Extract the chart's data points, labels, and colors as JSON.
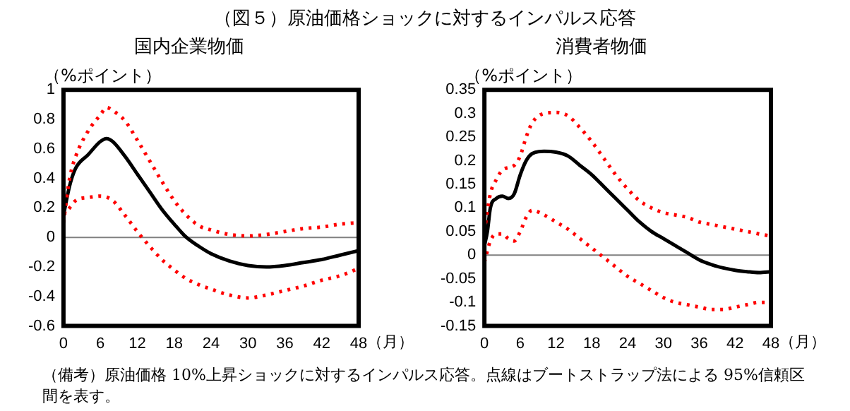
{
  "chart_data": [
    {
      "type": "line",
      "title": "国内企業物価",
      "ylabel": "（%ポイント）",
      "xlabel": "（月）",
      "xlim": [
        0,
        48
      ],
      "xticks": [
        0,
        6,
        12,
        18,
        24,
        30,
        36,
        42,
        48
      ],
      "ylim": [
        -0.6,
        1
      ],
      "yticks": [
        -0.6,
        -0.4,
        -0.2,
        0,
        0.2,
        0.4,
        0.6,
        0.8,
        1
      ],
      "grid": false,
      "legend": false,
      "marker": "none",
      "annotations": [
        "（図５）原油価格ショックに対するインパルス応答",
        "（備考）原油価格 10%上昇ショックに対するインパルス応答。点線はブートストラップ法による 95%信頼区間を表す。"
      ],
      "ref_lines": [
        {
          "axis": "y",
          "value": 0,
          "color": "#808080"
        }
      ],
      "series": [
        {
          "color": "#ff0000",
          "line_style": "dotted",
          "x": [
            0,
            1,
            2,
            4,
            6,
            7,
            8,
            10,
            12,
            14,
            16,
            18,
            20,
            22,
            24,
            27,
            30,
            33,
            36,
            39,
            42,
            45,
            48
          ],
          "values": [
            0.1,
            0.4,
            0.55,
            0.72,
            0.83,
            0.88,
            0.86,
            0.79,
            0.66,
            0.52,
            0.38,
            0.25,
            0.15,
            0.08,
            0.05,
            0.02,
            0.01,
            0.02,
            0.04,
            0.06,
            0.07,
            0.09,
            0.1
          ]
        },
        {
          "color": "#ff0000",
          "line_style": "dotted",
          "x": [
            0,
            1,
            2,
            4,
            6,
            8,
            10,
            12,
            14,
            16,
            18,
            20,
            22,
            24,
            27,
            30,
            33,
            36,
            39,
            42,
            45,
            48
          ],
          "values": [
            0.15,
            0.2,
            0.25,
            0.27,
            0.28,
            0.25,
            0.15,
            0.04,
            -0.06,
            -0.15,
            -0.22,
            -0.28,
            -0.32,
            -0.35,
            -0.39,
            -0.41,
            -0.39,
            -0.36,
            -0.33,
            -0.29,
            -0.26,
            -0.21
          ]
        },
        {
          "color": "#000000",
          "line_style": "solid",
          "x": [
            0,
            1,
            2,
            4,
            6,
            7,
            8,
            10,
            12,
            14,
            16,
            18,
            20,
            22,
            24,
            27,
            30,
            33,
            36,
            39,
            42,
            45,
            48
          ],
          "values": [
            0.15,
            0.35,
            0.47,
            0.56,
            0.65,
            0.67,
            0.65,
            0.55,
            0.43,
            0.31,
            0.19,
            0.09,
            0.0,
            -0.06,
            -0.11,
            -0.16,
            -0.19,
            -0.2,
            -0.19,
            -0.17,
            -0.15,
            -0.12,
            -0.09
          ]
        }
      ]
    },
    {
      "type": "line",
      "title": "消費者物価",
      "ylabel": "（%ポイント）",
      "xlabel": "（月）",
      "xlim": [
        0,
        48
      ],
      "xticks": [
        0,
        6,
        12,
        18,
        24,
        30,
        36,
        42,
        48
      ],
      "ylim": [
        -0.15,
        0.35
      ],
      "yticks": [
        -0.15,
        -0.1,
        -0.05,
        0,
        0.05,
        0.1,
        0.15,
        0.2,
        0.25,
        0.3,
        0.35
      ],
      "grid": false,
      "legend": false,
      "marker": "none",
      "ref_lines": [
        {
          "axis": "y",
          "value": 0,
          "color": "#808080"
        }
      ],
      "series": [
        {
          "color": "#ff0000",
          "line_style": "dotted",
          "x": [
            0,
            1,
            2,
            3,
            5,
            6,
            7,
            8,
            10,
            12,
            14,
            16,
            18,
            20,
            22,
            24,
            26,
            28,
            30,
            32,
            34,
            36,
            38,
            40,
            42,
            44,
            46,
            48
          ],
          "values": [
            0.05,
            0.13,
            0.16,
            0.18,
            0.19,
            0.21,
            0.25,
            0.28,
            0.3,
            0.302,
            0.295,
            0.27,
            0.24,
            0.205,
            0.17,
            0.14,
            0.115,
            0.1,
            0.09,
            0.085,
            0.08,
            0.07,
            0.065,
            0.06,
            0.055,
            0.05,
            0.045,
            0.04
          ]
        },
        {
          "color": "#ff0000",
          "line_style": "dotted",
          "x": [
            0,
            1,
            2,
            3,
            4,
            5,
            6,
            7,
            8,
            10,
            12,
            14,
            16,
            18,
            20,
            22,
            24,
            26,
            28,
            30,
            32,
            34,
            36,
            38,
            40,
            42,
            44,
            46,
            48
          ],
          "values": [
            -0.015,
            0.03,
            0.045,
            0.045,
            0.035,
            0.03,
            0.05,
            0.08,
            0.095,
            0.085,
            0.07,
            0.055,
            0.035,
            0.015,
            -0.005,
            -0.025,
            -0.045,
            -0.06,
            -0.075,
            -0.09,
            -0.1,
            -0.105,
            -0.11,
            -0.115,
            -0.115,
            -0.11,
            -0.105,
            -0.1,
            -0.1
          ]
        },
        {
          "color": "#000000",
          "line_style": "solid",
          "x": [
            0,
            0.5,
            1,
            2,
            3,
            4,
            5,
            6,
            7,
            8,
            10,
            12,
            14,
            16,
            18,
            20,
            22,
            24,
            26,
            28,
            30,
            32,
            34,
            36,
            38,
            40,
            42,
            44,
            46,
            48
          ],
          "values": [
            0.02,
            0.05,
            0.1,
            0.12,
            0.125,
            0.12,
            0.13,
            0.17,
            0.2,
            0.215,
            0.22,
            0.218,
            0.21,
            0.19,
            0.17,
            0.145,
            0.12,
            0.095,
            0.07,
            0.05,
            0.035,
            0.02,
            0.005,
            -0.01,
            -0.02,
            -0.027,
            -0.032,
            -0.035,
            -0.037,
            -0.035
          ]
        }
      ]
    }
  ]
}
